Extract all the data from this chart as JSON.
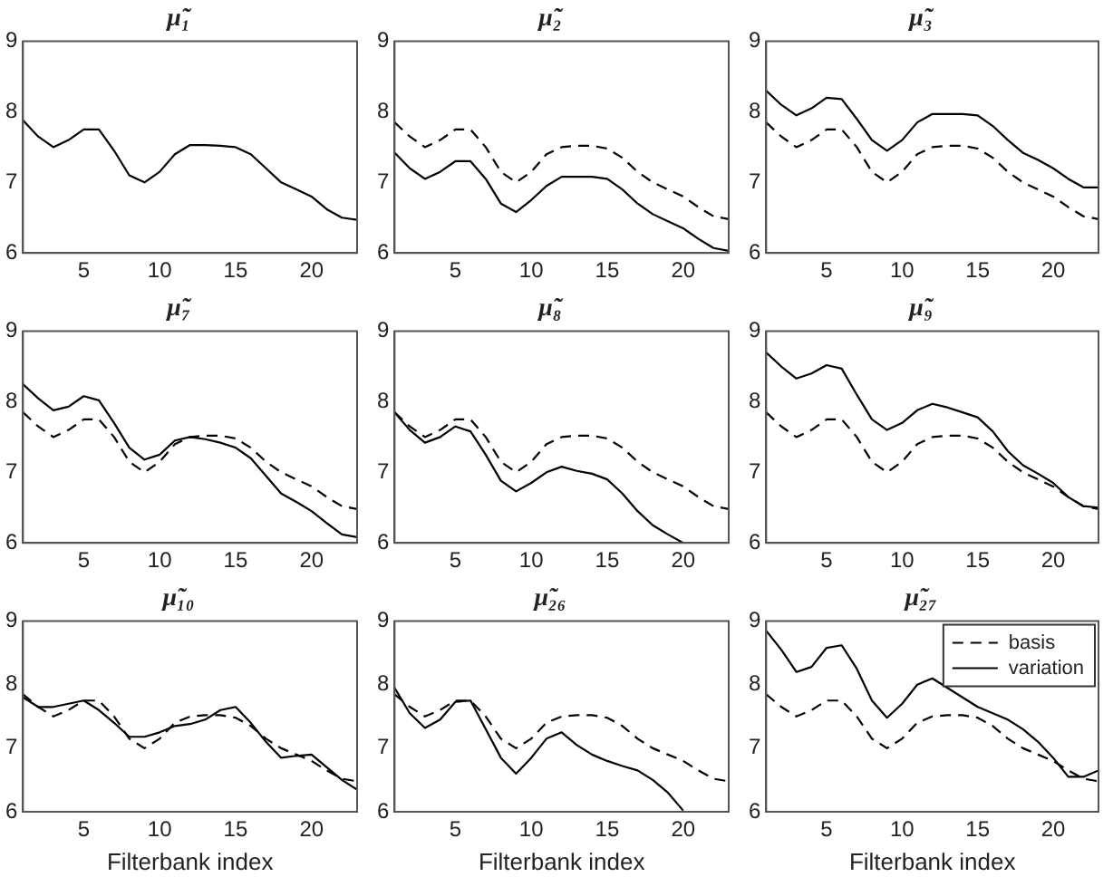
{
  "chart_data": [
    {
      "type": "line",
      "title": "μ̃₁",
      "x": [
        1,
        2,
        3,
        4,
        5,
        6,
        7,
        8,
        9,
        10,
        11,
        12,
        13,
        14,
        15,
        16,
        17,
        18,
        19,
        20,
        21,
        22,
        23
      ],
      "xlim": [
        1,
        23
      ],
      "xticks": [
        5,
        10,
        15,
        20
      ],
      "ylim": [
        6,
        9
      ],
      "yticks": [
        6,
        7,
        8,
        9
      ],
      "series": [
        {
          "color": "#000000",
          "line_style": "solid",
          "values": [
            7.88,
            7.65,
            7.5,
            7.6,
            7.75,
            7.75,
            7.45,
            7.1,
            7.0,
            7.15,
            7.4,
            7.53,
            7.53,
            7.52,
            7.5,
            7.4,
            7.2,
            7.0,
            6.9,
            6.8,
            6.62,
            6.5,
            6.47
          ]
        }
      ]
    },
    {
      "type": "line",
      "title": "μ̃₂",
      "x": [
        1,
        2,
        3,
        4,
        5,
        6,
        7,
        8,
        9,
        10,
        11,
        12,
        13,
        14,
        15,
        16,
        17,
        18,
        19,
        20,
        21,
        22,
        23
      ],
      "xlim": [
        1,
        23
      ],
      "xticks": [
        5,
        10,
        15,
        20
      ],
      "ylim": [
        6,
        9
      ],
      "yticks": [
        6,
        7,
        8,
        9
      ],
      "series": [
        {
          "color": "#000000",
          "line_style": "dashed",
          "values": [
            7.85,
            7.65,
            7.5,
            7.6,
            7.75,
            7.75,
            7.5,
            7.15,
            7.0,
            7.15,
            7.4,
            7.5,
            7.52,
            7.52,
            7.48,
            7.35,
            7.15,
            7.0,
            6.9,
            6.8,
            6.65,
            6.52,
            6.48
          ]
        },
        {
          "color": "#000000",
          "line_style": "solid",
          "values": [
            7.42,
            7.2,
            7.05,
            7.15,
            7.3,
            7.3,
            7.05,
            6.7,
            6.58,
            6.75,
            6.95,
            7.08,
            7.08,
            7.08,
            7.05,
            6.9,
            6.7,
            6.55,
            6.45,
            6.35,
            6.2,
            6.07,
            6.03
          ]
        }
      ]
    },
    {
      "type": "line",
      "title": "μ̃₃",
      "x": [
        1,
        2,
        3,
        4,
        5,
        6,
        7,
        8,
        9,
        10,
        11,
        12,
        13,
        14,
        15,
        16,
        17,
        18,
        19,
        20,
        21,
        22,
        23
      ],
      "xlim": [
        1,
        23
      ],
      "xticks": [
        5,
        10,
        15,
        20
      ],
      "ylim": [
        6,
        9
      ],
      "yticks": [
        6,
        7,
        8,
        9
      ],
      "series": [
        {
          "color": "#000000",
          "line_style": "dashed",
          "values": [
            7.85,
            7.65,
            7.5,
            7.6,
            7.75,
            7.75,
            7.5,
            7.15,
            7.0,
            7.15,
            7.4,
            7.5,
            7.52,
            7.52,
            7.48,
            7.35,
            7.15,
            7.0,
            6.9,
            6.8,
            6.65,
            6.52,
            6.48
          ]
        },
        {
          "color": "#000000",
          "line_style": "solid",
          "values": [
            8.3,
            8.1,
            7.95,
            8.05,
            8.2,
            8.18,
            7.9,
            7.6,
            7.45,
            7.6,
            7.85,
            7.97,
            7.97,
            7.97,
            7.95,
            7.8,
            7.6,
            7.42,
            7.32,
            7.2,
            7.05,
            6.93,
            6.93
          ]
        }
      ]
    },
    {
      "type": "line",
      "title": "μ̃₇",
      "x": [
        1,
        2,
        3,
        4,
        5,
        6,
        7,
        8,
        9,
        10,
        11,
        12,
        13,
        14,
        15,
        16,
        17,
        18,
        19,
        20,
        21,
        22,
        23
      ],
      "xlim": [
        1,
        23
      ],
      "xticks": [
        5,
        10,
        15,
        20
      ],
      "ylim": [
        6,
        9
      ],
      "yticks": [
        6,
        7,
        8,
        9
      ],
      "series": [
        {
          "color": "#000000",
          "line_style": "dashed",
          "values": [
            7.85,
            7.65,
            7.5,
            7.6,
            7.75,
            7.75,
            7.5,
            7.15,
            7.0,
            7.15,
            7.4,
            7.5,
            7.52,
            7.52,
            7.48,
            7.35,
            7.15,
            7.0,
            6.9,
            6.8,
            6.65,
            6.52,
            6.48
          ]
        },
        {
          "color": "#000000",
          "line_style": "solid",
          "values": [
            8.25,
            8.05,
            7.88,
            7.93,
            8.08,
            8.02,
            7.7,
            7.35,
            7.18,
            7.25,
            7.45,
            7.5,
            7.47,
            7.42,
            7.35,
            7.2,
            6.95,
            6.7,
            6.58,
            6.45,
            6.28,
            6.12,
            6.08
          ]
        }
      ]
    },
    {
      "type": "line",
      "title": "μ̃₈",
      "x": [
        1,
        2,
        3,
        4,
        5,
        6,
        7,
        8,
        9,
        10,
        11,
        12,
        13,
        14,
        15,
        16,
        17,
        18,
        19,
        20,
        21,
        22,
        23
      ],
      "xlim": [
        1,
        23
      ],
      "xticks": [
        5,
        10,
        15,
        20
      ],
      "ylim": [
        6,
        9
      ],
      "yticks": [
        6,
        7,
        8,
        9
      ],
      "series": [
        {
          "color": "#000000",
          "line_style": "dashed",
          "values": [
            7.85,
            7.65,
            7.5,
            7.6,
            7.75,
            7.75,
            7.5,
            7.15,
            7.0,
            7.15,
            7.4,
            7.5,
            7.52,
            7.52,
            7.48,
            7.35,
            7.15,
            7.0,
            6.9,
            6.8,
            6.65,
            6.52,
            6.48
          ]
        },
        {
          "color": "#000000",
          "line_style": "solid",
          "values": [
            7.85,
            7.6,
            7.42,
            7.5,
            7.65,
            7.58,
            7.25,
            6.88,
            6.73,
            6.85,
            7.0,
            7.08,
            7.02,
            6.98,
            6.9,
            6.7,
            6.45,
            6.25,
            6.12,
            6.0,
            null,
            null,
            null
          ]
        }
      ]
    },
    {
      "type": "line",
      "title": "μ̃₉",
      "x": [
        1,
        2,
        3,
        4,
        5,
        6,
        7,
        8,
        9,
        10,
        11,
        12,
        13,
        14,
        15,
        16,
        17,
        18,
        19,
        20,
        21,
        22,
        23
      ],
      "xlim": [
        1,
        23
      ],
      "xticks": [
        5,
        10,
        15,
        20
      ],
      "ylim": [
        6,
        9
      ],
      "yticks": [
        6,
        7,
        8,
        9
      ],
      "series": [
        {
          "color": "#000000",
          "line_style": "dashed",
          "values": [
            7.85,
            7.65,
            7.5,
            7.6,
            7.75,
            7.75,
            7.5,
            7.15,
            7.0,
            7.15,
            7.4,
            7.5,
            7.52,
            7.52,
            7.48,
            7.35,
            7.15,
            7.0,
            6.9,
            6.8,
            6.65,
            6.52,
            6.48
          ]
        },
        {
          "color": "#000000",
          "line_style": "solid",
          "values": [
            8.7,
            8.5,
            8.33,
            8.4,
            8.52,
            8.47,
            8.1,
            7.75,
            7.6,
            7.7,
            7.88,
            7.97,
            7.92,
            7.85,
            7.78,
            7.58,
            7.3,
            7.1,
            6.98,
            6.85,
            6.65,
            6.52,
            6.5
          ]
        }
      ]
    },
    {
      "type": "line",
      "title": "μ̃₁₀",
      "xlabel": "Filterbank index",
      "x": [
        1,
        2,
        3,
        4,
        5,
        6,
        7,
        8,
        9,
        10,
        11,
        12,
        13,
        14,
        15,
        16,
        17,
        18,
        19,
        20,
        21,
        22,
        23
      ],
      "xlim": [
        1,
        23
      ],
      "xticks": [
        5,
        10,
        15,
        20
      ],
      "ylim": [
        6,
        9
      ],
      "yticks": [
        6,
        7,
        8,
        9
      ],
      "series": [
        {
          "color": "#000000",
          "line_style": "dashed",
          "values": [
            7.85,
            7.65,
            7.5,
            7.6,
            7.75,
            7.75,
            7.5,
            7.15,
            7.0,
            7.15,
            7.4,
            7.5,
            7.52,
            7.52,
            7.48,
            7.35,
            7.15,
            7.0,
            6.9,
            6.8,
            6.65,
            6.52,
            6.48
          ]
        },
        {
          "color": "#000000",
          "line_style": "solid",
          "values": [
            7.8,
            7.65,
            7.65,
            7.7,
            7.75,
            7.6,
            7.4,
            7.18,
            7.18,
            7.25,
            7.35,
            7.38,
            7.45,
            7.6,
            7.65,
            7.4,
            7.1,
            6.85,
            6.88,
            6.9,
            6.7,
            6.5,
            6.35
          ]
        }
      ]
    },
    {
      "type": "line",
      "title": "μ̃₂₆",
      "xlabel": "Filterbank index",
      "x": [
        1,
        2,
        3,
        4,
        5,
        6,
        7,
        8,
        9,
        10,
        11,
        12,
        13,
        14,
        15,
        16,
        17,
        18,
        19,
        20,
        21,
        22,
        23
      ],
      "xlim": [
        1,
        23
      ],
      "xticks": [
        5,
        10,
        15,
        20
      ],
      "ylim": [
        6,
        9
      ],
      "yticks": [
        6,
        7,
        8,
        9
      ],
      "series": [
        {
          "color": "#000000",
          "line_style": "dashed",
          "values": [
            7.85,
            7.65,
            7.5,
            7.6,
            7.75,
            7.75,
            7.5,
            7.15,
            7.0,
            7.15,
            7.4,
            7.5,
            7.52,
            7.52,
            7.48,
            7.35,
            7.15,
            7.0,
            6.9,
            6.8,
            6.65,
            6.52,
            6.48
          ]
        },
        {
          "color": "#000000",
          "line_style": "solid",
          "values": [
            7.95,
            7.55,
            7.32,
            7.45,
            7.73,
            7.75,
            7.3,
            6.85,
            6.6,
            6.85,
            7.15,
            7.25,
            7.05,
            6.9,
            6.8,
            6.72,
            6.65,
            6.5,
            6.3,
            6.02,
            null,
            null,
            null
          ]
        }
      ]
    },
    {
      "type": "line",
      "title": "μ̃₂₇",
      "xlabel": "Filterbank index",
      "legend": "top right",
      "x": [
        1,
        2,
        3,
        4,
        5,
        6,
        7,
        8,
        9,
        10,
        11,
        12,
        13,
        14,
        15,
        16,
        17,
        18,
        19,
        20,
        21,
        22,
        23
      ],
      "xlim": [
        1,
        23
      ],
      "xticks": [
        5,
        10,
        15,
        20
      ],
      "ylim": [
        6,
        9
      ],
      "yticks": [
        6,
        7,
        8,
        9
      ],
      "series": [
        {
          "name": "basis",
          "color": "#000000",
          "line_style": "dashed",
          "values": [
            7.85,
            7.65,
            7.5,
            7.6,
            7.75,
            7.75,
            7.5,
            7.15,
            7.0,
            7.15,
            7.4,
            7.5,
            7.52,
            7.52,
            7.48,
            7.35,
            7.15,
            7.0,
            6.9,
            6.8,
            6.65,
            6.52,
            6.48
          ]
        },
        {
          "name": "variation",
          "color": "#000000",
          "line_style": "solid",
          "values": [
            8.85,
            8.55,
            8.2,
            8.28,
            8.58,
            8.62,
            8.25,
            7.75,
            7.48,
            7.7,
            8.0,
            8.1,
            7.95,
            7.8,
            7.65,
            7.55,
            7.45,
            7.3,
            7.1,
            6.85,
            6.55,
            6.55,
            6.65
          ]
        }
      ]
    }
  ]
}
